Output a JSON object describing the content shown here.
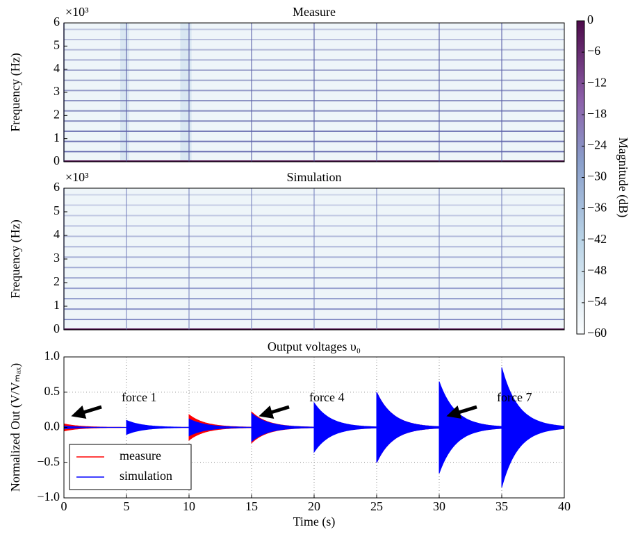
{
  "chart_data": [
    {
      "type": "spectrogram",
      "title": "Measure",
      "ylabel": "Frequency (Hz)",
      "multiplier": "×10³",
      "xlim": [
        0,
        40
      ],
      "ylim": [
        0,
        6000
      ],
      "yticks": [
        0,
        {
          "value": 1000,
          "label": "1"
        },
        {
          "value": 2000,
          "label": "2"
        },
        {
          "value": 3000,
          "label": "3"
        },
        {
          "value": 4000,
          "label": "4"
        },
        {
          "value": 5000,
          "label": "5"
        },
        {
          "value": 6000,
          "label": "6"
        }
      ],
      "harmonics": [
        440,
        880,
        1320,
        1760,
        2200,
        2640,
        3080,
        3520,
        3960,
        4400,
        4840,
        5280,
        5720
      ],
      "onsets": [
        0,
        5,
        10,
        15,
        20,
        25,
        30,
        35
      ],
      "color": "#5a5fa8"
    },
    {
      "type": "spectrogram",
      "title": "Simulation",
      "ylabel": "Frequency (Hz)",
      "multiplier": "×10³",
      "xlim": [
        0,
        40
      ],
      "ylim": [
        0,
        6000
      ],
      "yticks": [
        0,
        {
          "value": 1000,
          "label": "1"
        },
        {
          "value": 2000,
          "label": "2"
        },
        {
          "value": 3000,
          "label": "3"
        },
        {
          "value": 4000,
          "label": "4"
        },
        {
          "value": 5000,
          "label": "5"
        },
        {
          "value": 6000,
          "label": "6"
        }
      ],
      "harmonics": [
        440,
        880,
        1320,
        1760,
        2200,
        2640,
        3080,
        3520,
        3960,
        4400,
        4840,
        5280,
        5720
      ],
      "onsets": [
        0,
        5,
        10,
        15,
        20,
        25,
        30,
        35
      ],
      "color": "#7a84c0"
    },
    {
      "type": "colorbar",
      "label": "Magnitude (dB)",
      "zlim": [
        -60,
        0
      ],
      "zticks": [
        0,
        {
          "value": -6,
          "label": "−6"
        },
        {
          "value": -12,
          "label": "−12"
        },
        {
          "value": -18,
          "label": "−18"
        },
        {
          "value": -24,
          "label": "−24"
        },
        {
          "value": -30,
          "label": "−30"
        },
        {
          "value": -36,
          "label": "−36"
        },
        {
          "value": -42,
          "label": "−42"
        },
        {
          "value": -48,
          "label": "−48"
        },
        {
          "value": -54,
          "label": "−54"
        },
        {
          "value": -60,
          "label": "−60"
        }
      ]
    },
    {
      "type": "decay",
      "title": "Output voltages υ₀",
      "xlabel": "Time (s)",
      "ylabel": "Normalized Out (V/Vₘₐₓ)",
      "xlim": [
        0,
        40
      ],
      "ylim": [
        -1,
        1
      ],
      "xticks": [
        0,
        5,
        10,
        15,
        20,
        25,
        30,
        35,
        40
      ],
      "yticks": [
        {
          "value": -1,
          "label": "−1.0"
        },
        {
          "value": -0.5,
          "label": "−0.5"
        },
        {
          "value": 0,
          "label": "0.0"
        },
        {
          "value": 0.5,
          "label": "0.5"
        },
        {
          "value": 1,
          "label": "1.0"
        }
      ],
      "grid": true,
      "legend": "lower left",
      "x": [
        0,
        5,
        10,
        15,
        20,
        25,
        30,
        35
      ],
      "series": [
        {
          "name": "measure",
          "color": "#ff0000",
          "values": [
            0.05,
            0.04,
            0.18,
            0.22,
            0.33,
            0.5,
            0.62,
            0.8
          ]
        },
        {
          "name": "simulation",
          "color": "#0000ff",
          "values": [
            0.02,
            0.1,
            0.12,
            0.2,
            0.35,
            0.5,
            0.65,
            0.85
          ]
        }
      ],
      "annotations": [
        "force 1",
        "force 4",
        "force 7"
      ]
    }
  ]
}
